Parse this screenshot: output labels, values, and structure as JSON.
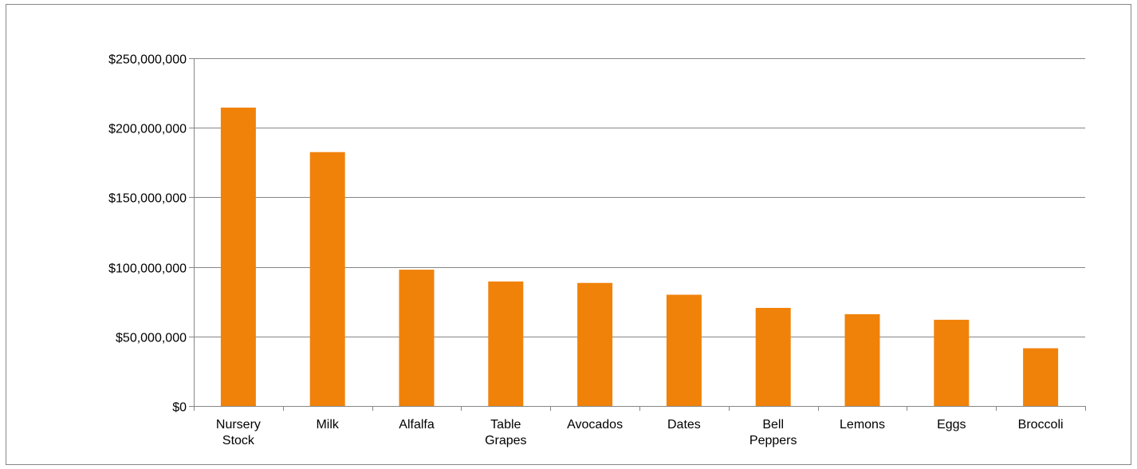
{
  "chart_data": {
    "type": "bar",
    "title": "",
    "xlabel": "",
    "ylabel": "",
    "categories": [
      [
        "Nursery",
        "Stock"
      ],
      [
        "Milk"
      ],
      [
        "Alfalfa"
      ],
      [
        "Table",
        "Grapes"
      ],
      [
        "Avocados"
      ],
      [
        "Dates"
      ],
      [
        "Bell",
        "Peppers"
      ],
      [
        "Lemons"
      ],
      [
        "Eggs"
      ],
      [
        "Broccoli"
      ]
    ],
    "values": [
      214500000,
      182500000,
      98000000,
      89500000,
      88500000,
      80000000,
      70500000,
      66000000,
      62000000,
      41500000
    ],
    "ylim": [
      0,
      250000000
    ],
    "yticks": [
      0,
      50000000,
      100000000,
      150000000,
      200000000,
      250000000
    ],
    "ytick_labels": [
      "$0",
      "$50,000,000",
      "$100,000,000",
      "$150,000,000",
      "$200,000,000",
      "$250,000,000"
    ],
    "grid": true,
    "legend": "none",
    "colors": {
      "bar": "#F0820A",
      "gridline": "#868686",
      "axis": "#868686",
      "frame": "#868686",
      "text": "#000000"
    }
  }
}
